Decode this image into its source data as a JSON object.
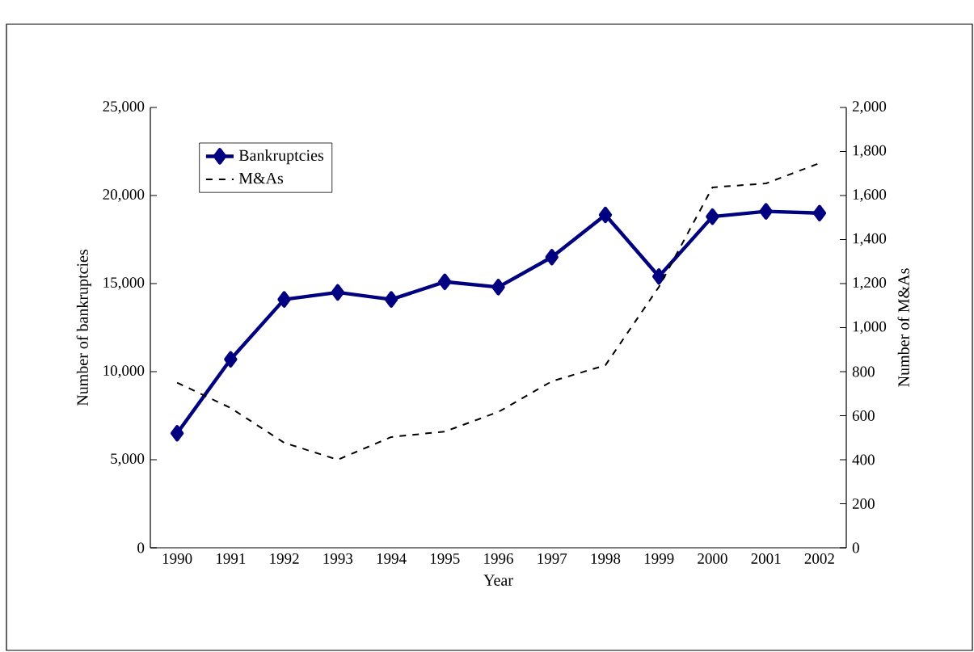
{
  "chart_data": {
    "type": "line",
    "xlabel": "Year",
    "ylabel": "Number of bankruptcies",
    "y2label": "Number of M&As",
    "categories": [
      "1990",
      "1991",
      "1992",
      "1993",
      "1994",
      "1995",
      "1996",
      "1997",
      "1998",
      "1999",
      "2000",
      "2001",
      "2002"
    ],
    "series": [
      {
        "name": "Bankruptcies",
        "color": "#000080",
        "marker": "diamond",
        "line_style": "solid",
        "values": [
          6500,
          10700,
          14100,
          14500,
          14100,
          15100,
          14800,
          16500,
          18900,
          15400,
          18800,
          19100,
          19000
        ]
      },
      {
        "name": "M&As",
        "color": "#000000",
        "marker": "none",
        "line_style": "dashed",
        "axis": "y2",
        "values": [
          750,
          635,
          477,
          400,
          503,
          528,
          617,
          756,
          829,
          1185,
          1637,
          1655,
          1747
        ]
      }
    ],
    "ylim": [
      0,
      25000
    ],
    "yticks": [
      0,
      {
        "value": 5000,
        "label": "5,000"
      },
      {
        "value": 10000,
        "label": "10,000"
      },
      {
        "value": 15000,
        "label": "15,000"
      },
      {
        "value": 20000,
        "label": "20,000"
      },
      {
        "value": 25000,
        "label": "25,000"
      }
    ],
    "y2lim": [
      0,
      2000
    ],
    "y2ticks": [
      0,
      200,
      400,
      600,
      800,
      {
        "value": 1000,
        "label": "1,000"
      },
      {
        "value": 1200,
        "label": "1,200"
      },
      {
        "value": 1400,
        "label": "1,400"
      },
      {
        "value": 1600,
        "label": "1,600"
      },
      {
        "value": 1800,
        "label": "1,800"
      },
      {
        "value": 2000,
        "label": "2,000"
      }
    ],
    "legend": "top left",
    "grid": false
  }
}
